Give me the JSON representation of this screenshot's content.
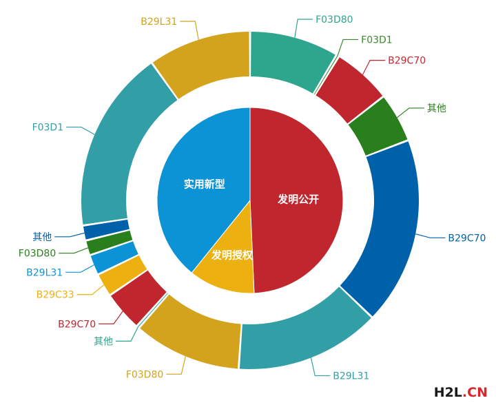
{
  "chart_data": {
    "type": "pie",
    "inner": {
      "slices": [
        {
          "label": "发明公开",
          "value": 49.3,
          "color": "#c0262e"
        },
        {
          "label": "发明授权",
          "value": 11.5,
          "color": "#ecb011"
        },
        {
          "label": "实用新型",
          "value": 39.2,
          "color": "#0b93d6"
        }
      ]
    },
    "outer": {
      "slices": [
        {
          "label": "F03D80",
          "value": 9.5,
          "color": "#2ea58d"
        },
        {
          "label": "F03D1",
          "value": 0.3,
          "color": "#3a8a2b"
        },
        {
          "label": "B29C70",
          "value": 6.3,
          "color": "#c0262e"
        },
        {
          "label": "其他",
          "value": 5.3,
          "color": "#2a7f1d"
        },
        {
          "label": "B29C70",
          "value": 20.0,
          "color": "#0061ab"
        },
        {
          "label": "B29L31",
          "value": 15.5,
          "color": "#329fa7"
        },
        {
          "label": "F03D80",
          "value": 11.5,
          "color": "#d3a31e"
        },
        {
          "label": "其他",
          "value": 0.3,
          "color": "#2ea58d"
        },
        {
          "label": "B29C70",
          "value": 4.3,
          "color": "#c0262e"
        },
        {
          "label": "B29C33",
          "value": 2.5,
          "color": "#ecb011"
        },
        {
          "label": "B29L31",
          "value": 2.2,
          "color": "#0b93d6"
        },
        {
          "label": "F03D80",
          "value": 1.6,
          "color": "#2a7f1d"
        },
        {
          "label": "其他",
          "value": 1.6,
          "color": "#0061ab"
        },
        {
          "label": "F03D1",
          "value": 19.5,
          "color": "#329fa7"
        },
        {
          "label": "B29L31",
          "value": 11.0,
          "color": "#d3a31e"
        }
      ]
    }
  },
  "watermark": {
    "part1": "H2L",
    "part2": ".CN"
  }
}
